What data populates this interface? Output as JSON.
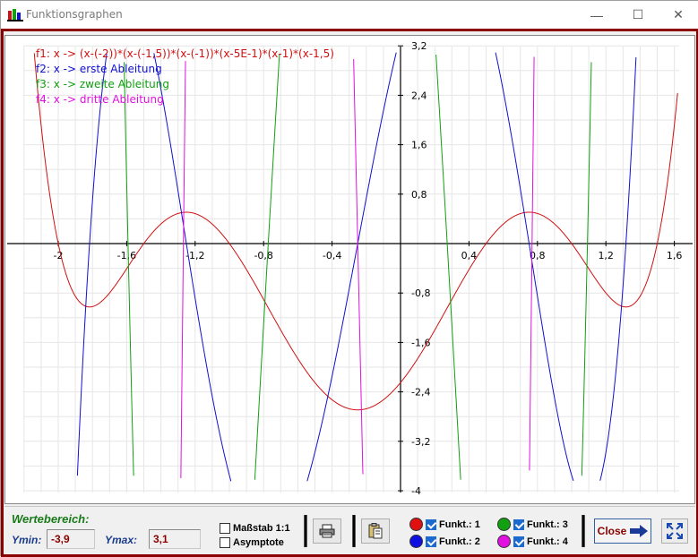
{
  "window": {
    "title": "Funktionsgraphen",
    "minimize_glyph": "—",
    "maximize_glyph": "☐",
    "close_glyph": "✕"
  },
  "legend": [
    {
      "label": "f1:  x -> (x-(-2))*(x-(-1,5))*(x-(-1))*(x-5E-1)*(x-1)*(x-1,5)",
      "color": "#d01010"
    },
    {
      "label": "f2:  x -> erste  Ableitung",
      "color": "#1010d0"
    },
    {
      "label": "f3:  x -> zweite Ableitung",
      "color": "#10a010"
    },
    {
      "label": "f4:  x -> dritte Ableitung",
      "color": "#e010e0"
    }
  ],
  "chart_data": {
    "type": "line",
    "title": "",
    "xlabel": "",
    "ylabel": "",
    "xlim": [
      -2.2,
      1.65
    ],
    "ylim": [
      -4,
      3.2
    ],
    "x_ticks": [
      "-2",
      "-1,6",
      "-1,2",
      "-0,8",
      "-0,4",
      "0,4",
      "0,8",
      "1,2",
      "1,6"
    ],
    "y_ticks": [
      "3,2",
      "2,4",
      "1,6",
      "0,8",
      "-0,8",
      "-1,6",
      "-2,4",
      "-3,2",
      "-4"
    ],
    "grid": true,
    "legend_position": "top-left",
    "series": [
      {
        "name": "f1",
        "color": "#d01010",
        "function": "(x+2)*(x+1.5)*(x+1)*(x-0.5)*(x-1)*(x-1.5)"
      },
      {
        "name": "f2",
        "color": "#1010d0",
        "function": "first derivative of f1"
      },
      {
        "name": "f3",
        "color": "#10a010",
        "function": "second derivative of f1"
      },
      {
        "name": "f4",
        "color": "#e010e0",
        "function": "third derivative of f1"
      }
    ]
  },
  "status": {
    "wertebereich_label": "Wertebereich:",
    "ymin_label": "Ymin:",
    "ymin_value": "-3,9",
    "ymax_label": "Ymax:",
    "ymax_value": "3,1",
    "massstab_label": "Maßstab 1:1",
    "massstab_checked": false,
    "asymptote_label": "Asymptote",
    "asymptote_checked": false,
    "funkt": [
      {
        "label": "Funkt.: 1",
        "color": "#e01010",
        "checked": true
      },
      {
        "label": "Funkt.: 2",
        "color": "#1010e0",
        "checked": true
      },
      {
        "label": "Funkt.: 3",
        "color": "#10a010",
        "checked": true
      },
      {
        "label": "Funkt.: 4",
        "color": "#e010e0",
        "checked": true
      }
    ],
    "close_label": "Close",
    "print_icon": "printer-icon",
    "paste_icon": "clipboard-icon",
    "expand_icon": "expand-icon"
  }
}
